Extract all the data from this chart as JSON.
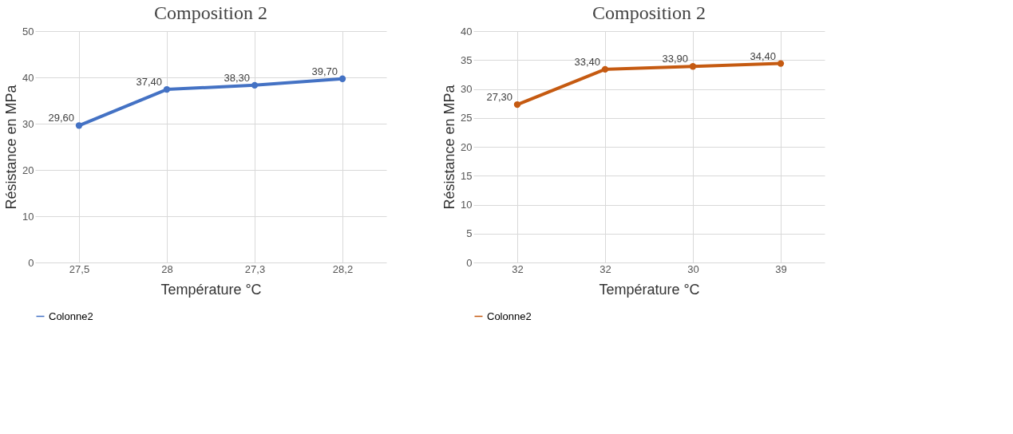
{
  "chart_data": [
    {
      "type": "line",
      "title": "Composition 2",
      "xlabel": "Température °C",
      "ylabel": "Résistance  en MPa",
      "categories": [
        "27,5",
        "28",
        "27,3",
        "28,2"
      ],
      "series": [
        {
          "name": "Colonne2",
          "color": "#4472c4",
          "values": [
            29.6,
            37.4,
            38.3,
            39.7
          ],
          "value_labels": [
            "29,60",
            "37,40",
            "38,30",
            "39,70"
          ]
        }
      ],
      "ylim": [
        0,
        50
      ],
      "yticks": [
        0,
        10,
        20,
        30,
        40,
        50
      ],
      "grid": true,
      "legend": "bottom",
      "marker": "circle",
      "line_style": "solid"
    },
    {
      "type": "line",
      "title": "Composition 2",
      "xlabel": "Température °C",
      "ylabel": "Résistance  en MPa",
      "categories": [
        "32",
        "32",
        "30",
        "39"
      ],
      "series": [
        {
          "name": "Colonne2",
          "color": "#c55a11",
          "values": [
            27.3,
            33.4,
            33.9,
            34.4
          ],
          "value_labels": [
            "27,30",
            "33,40",
            "33,90",
            "34,40"
          ]
        }
      ],
      "ylim": [
        0,
        40
      ],
      "yticks": [
        0,
        5,
        10,
        15,
        20,
        25,
        30,
        35,
        40
      ],
      "grid": true,
      "legend": "bottom",
      "marker": "circle",
      "line_style": "solid"
    }
  ]
}
